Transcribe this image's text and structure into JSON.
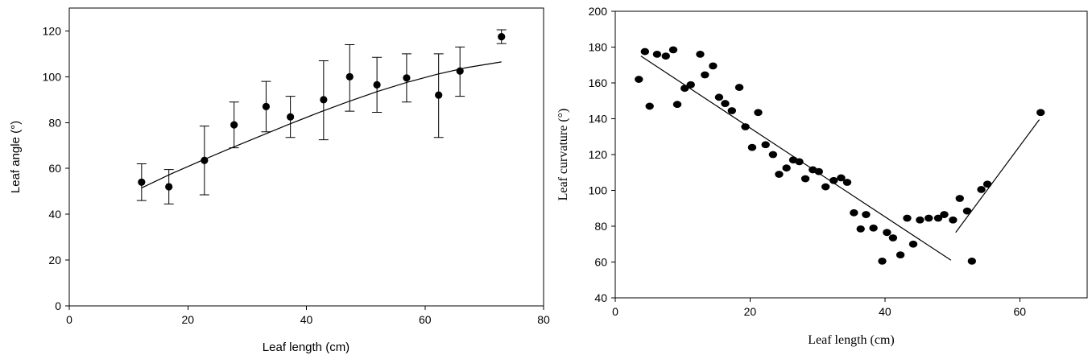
{
  "chart_data": [
    {
      "type": "scatter",
      "xlabel": "Leaf length (cm)",
      "ylabel": "Leaf angle (°)",
      "xlim": [
        0,
        80
      ],
      "ylim": [
        0,
        130
      ],
      "xticks": [
        0,
        20,
        40,
        60,
        80
      ],
      "yticks": [
        0,
        20,
        40,
        60,
        80,
        100,
        120
      ],
      "grid": false,
      "points": [
        {
          "x": 12.2,
          "y": 54,
          "err_low": 46,
          "err_high": 62
        },
        {
          "x": 16.8,
          "y": 52,
          "err_low": 44.5,
          "err_high": 59.5
        },
        {
          "x": 22.8,
          "y": 63.5,
          "err_low": 48.5,
          "err_high": 78.5
        },
        {
          "x": 27.8,
          "y": 79,
          "err_low": 69,
          "err_high": 89
        },
        {
          "x": 33.2,
          "y": 87,
          "err_low": 76,
          "err_high": 98
        },
        {
          "x": 37.3,
          "y": 82.5,
          "err_low": 73.5,
          "err_high": 91.5
        },
        {
          "x": 42.9,
          "y": 90,
          "err_low": 72.5,
          "err_high": 107
        },
        {
          "x": 47.3,
          "y": 100,
          "err_low": 85,
          "err_high": 114
        },
        {
          "x": 51.9,
          "y": 96.5,
          "err_low": 84.5,
          "err_high": 108.5
        },
        {
          "x": 56.9,
          "y": 99.5,
          "err_low": 89,
          "err_high": 110
        },
        {
          "x": 62.3,
          "y": 92,
          "err_low": 73.5,
          "err_high": 110
        },
        {
          "x": 65.9,
          "y": 102.5,
          "err_low": 91.5,
          "err_high": 113
        },
        {
          "x": 72.9,
          "y": 117.5,
          "err_low": 114.5,
          "err_high": 120.5
        }
      ],
      "fit_line": {
        "x": [
          12.2,
          17,
          22,
          27,
          32,
          37,
          42,
          47,
          52,
          57,
          62,
          67,
          72.9
        ],
        "y": [
          51.5,
          57.4,
          63.1,
          68.6,
          73.9,
          79.2,
          84.3,
          89.1,
          93.6,
          97.6,
          101.1,
          104,
          106.5
        ]
      }
    },
    {
      "type": "scatter",
      "xlabel": "Leaf length (cm)",
      "ylabel": "Leaf curvature (°)",
      "xlim": [
        0,
        70
      ],
      "ylim": [
        40,
        200
      ],
      "xticks": [
        0,
        20,
        40,
        60
      ],
      "yticks": [
        40,
        60,
        80,
        100,
        120,
        140,
        160,
        180,
        200
      ],
      "grid": false,
      "points": [
        {
          "x": 3.5,
          "y": 162
        },
        {
          "x": 4.4,
          "y": 177.5
        },
        {
          "x": 5.1,
          "y": 147
        },
        {
          "x": 6.2,
          "y": 176
        },
        {
          "x": 7.5,
          "y": 175
        },
        {
          "x": 8.6,
          "y": 178.5
        },
        {
          "x": 9.2,
          "y": 148
        },
        {
          "x": 10.3,
          "y": 157
        },
        {
          "x": 11.2,
          "y": 159
        },
        {
          "x": 12.6,
          "y": 176
        },
        {
          "x": 13.3,
          "y": 164.5
        },
        {
          "x": 14.5,
          "y": 169.5
        },
        {
          "x": 15.4,
          "y": 152
        },
        {
          "x": 16.3,
          "y": 148.5
        },
        {
          "x": 17.3,
          "y": 144.5
        },
        {
          "x": 18.4,
          "y": 157.5
        },
        {
          "x": 19.3,
          "y": 135.5
        },
        {
          "x": 20.3,
          "y": 124
        },
        {
          "x": 21.2,
          "y": 143.5
        },
        {
          "x": 22.3,
          "y": 125.5
        },
        {
          "x": 23.4,
          "y": 120
        },
        {
          "x": 24.3,
          "y": 109
        },
        {
          "x": 25.4,
          "y": 112.5
        },
        {
          "x": 26.4,
          "y": 117
        },
        {
          "x": 27.3,
          "y": 116
        },
        {
          "x": 28.2,
          "y": 106.5
        },
        {
          "x": 29.3,
          "y": 111.5
        },
        {
          "x": 30.2,
          "y": 110.5
        },
        {
          "x": 31.2,
          "y": 102
        },
        {
          "x": 32.4,
          "y": 105.5
        },
        {
          "x": 33.5,
          "y": 107
        },
        {
          "x": 34.4,
          "y": 104.5
        },
        {
          "x": 35.4,
          "y": 87.5
        },
        {
          "x": 36.4,
          "y": 78.5
        },
        {
          "x": 37.2,
          "y": 86.5
        },
        {
          "x": 38.3,
          "y": 79
        },
        {
          "x": 39.6,
          "y": 60.5
        },
        {
          "x": 40.3,
          "y": 76.5
        },
        {
          "x": 41.2,
          "y": 73.5
        },
        {
          "x": 42.3,
          "y": 64
        },
        {
          "x": 43.3,
          "y": 84.5
        },
        {
          "x": 44.2,
          "y": 70
        },
        {
          "x": 45.2,
          "y": 83.5
        },
        {
          "x": 46.5,
          "y": 84.5
        },
        {
          "x": 47.9,
          "y": 84.5
        },
        {
          "x": 48.8,
          "y": 86.5
        },
        {
          "x": 50.1,
          "y": 83.5
        },
        {
          "x": 51.1,
          "y": 95.5
        },
        {
          "x": 52.2,
          "y": 88.5
        },
        {
          "x": 52.9,
          "y": 60.5
        },
        {
          "x": 54.3,
          "y": 100.5
        },
        {
          "x": 55.2,
          "y": 103.5
        },
        {
          "x": 63.1,
          "y": 143.5
        }
      ],
      "fit_lines": [
        {
          "x": [
            3.8,
            49.8
          ],
          "y": [
            175,
            61
          ]
        },
        {
          "x": [
            50.5,
            62.9
          ],
          "y": [
            76.5,
            139.5
          ]
        }
      ]
    }
  ]
}
